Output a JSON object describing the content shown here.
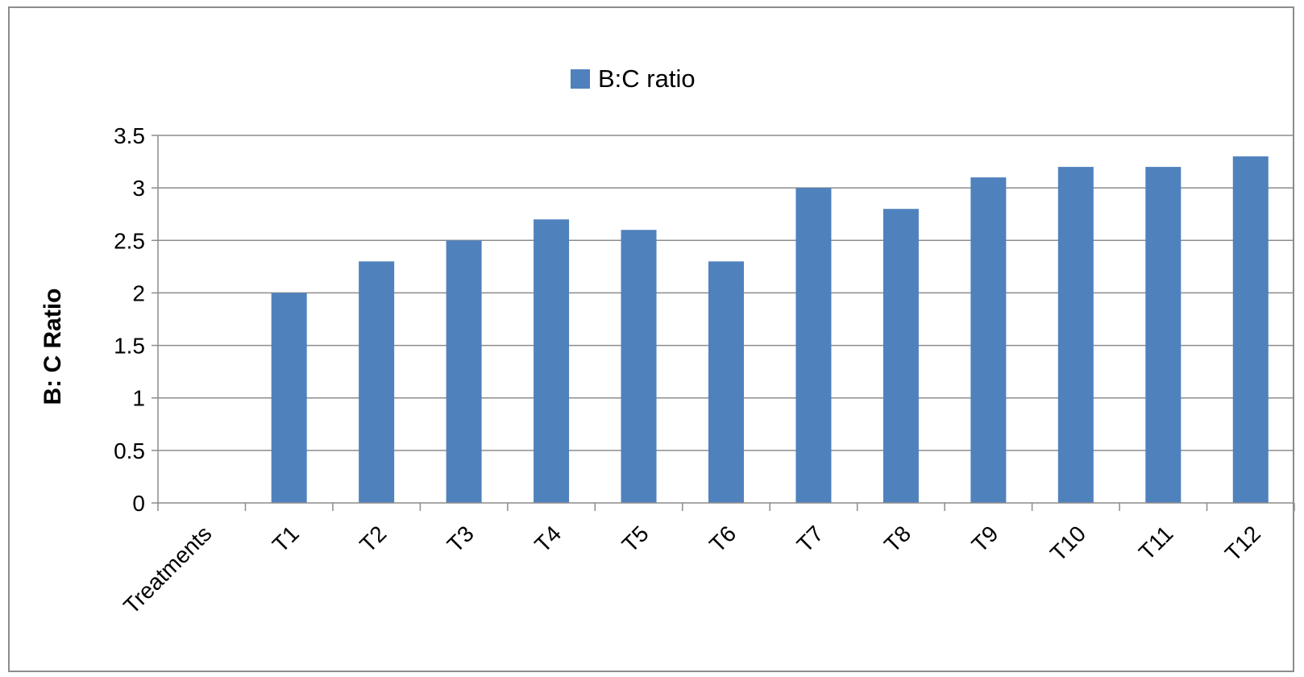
{
  "chart_data": {
    "type": "bar",
    "categories": [
      "Treatments",
      "T1",
      "T2",
      "T3",
      "T4",
      "T5",
      "T6",
      "T7",
      "T8",
      "T9",
      "T10",
      "T11",
      "T12"
    ],
    "series": [
      {
        "name": "B:C ratio",
        "values": [
          null,
          2.0,
          2.3,
          2.5,
          2.7,
          2.6,
          2.3,
          3.0,
          2.8,
          3.1,
          3.2,
          3.2,
          3.3
        ]
      }
    ],
    "ylabel": "B: C Ratio",
    "xlabel": "",
    "ylim": [
      0,
      3.5
    ],
    "yticks": [
      "0",
      "0.5",
      "1",
      "1.5",
      "2",
      "2.5",
      "3",
      "3.5"
    ],
    "grid": true,
    "legend_position": "top-center",
    "colors": {
      "bar": "#4f81bd",
      "grid": "#8c8c8c",
      "axis": "#8c8c8c"
    }
  }
}
